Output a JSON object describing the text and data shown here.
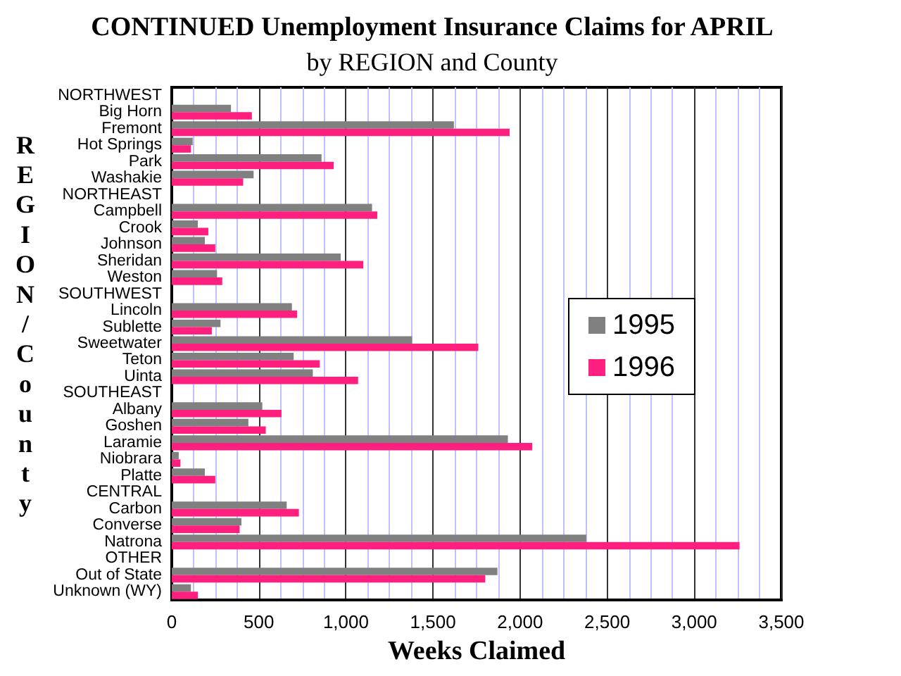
{
  "chart_data": {
    "type": "bar",
    "orientation": "horizontal",
    "title": "CONTINUED Unemployment Insurance Claims for APRIL",
    "subtitle": "by REGION and County",
    "xlabel": "Weeks Claimed",
    "ylabel": "REGION/County",
    "categories": [
      "NORTHWEST",
      "Big Horn",
      "Fremont",
      "Hot Springs",
      "Park",
      "Washakie",
      "NORTHEAST",
      "Campbell",
      "Crook",
      "Johnson",
      "Sheridan",
      "Weston",
      "SOUTHWEST",
      "Lincoln",
      "Sublette",
      "Sweetwater",
      "Teton",
      "Uinta",
      "SOUTHEAST",
      "Albany",
      "Goshen",
      "Laramie",
      "Niobrara",
      "Platte",
      "CENTRAL",
      "Carbon",
      "Converse",
      "Natrona",
      "OTHER",
      "Out of State",
      "Unknown (WY)"
    ],
    "series": [
      {
        "name": "1995",
        "color": "#808080",
        "values": [
          null,
          340,
          1620,
          120,
          860,
          470,
          null,
          1150,
          150,
          190,
          970,
          260,
          null,
          690,
          280,
          1380,
          700,
          810,
          null,
          520,
          440,
          1930,
          40,
          190,
          null,
          660,
          400,
          2380,
          null,
          1870,
          110
        ]
      },
      {
        "name": "1996",
        "color": "#ff1f7f",
        "values": [
          null,
          460,
          1940,
          110,
          930,
          410,
          null,
          1180,
          210,
          250,
          1100,
          290,
          null,
          720,
          230,
          1760,
          850,
          1070,
          null,
          630,
          540,
          2070,
          50,
          250,
          null,
          730,
          390,
          3260,
          null,
          1800,
          150
        ]
      }
    ],
    "xlim": [
      0,
      3500
    ],
    "xticks": [
      0,
      {
        "value": 125,
        "label": null
      },
      {
        "value": 250,
        "label": null
      },
      {
        "value": 375,
        "label": null
      },
      500,
      {
        "value": 625,
        "label": null
      },
      {
        "value": 750,
        "label": null
      },
      {
        "value": 875,
        "label": null
      },
      {
        "value": 1000,
        "label": "1,000"
      },
      {
        "value": 1125,
        "label": null
      },
      {
        "value": 1250,
        "label": null
      },
      {
        "value": 1375,
        "label": null
      },
      {
        "value": 1500,
        "label": "1,500"
      },
      {
        "value": 1625,
        "label": null
      },
      {
        "value": 1750,
        "label": null
      },
      {
        "value": 1875,
        "label": null
      },
      {
        "value": 2000,
        "label": "2,000"
      },
      {
        "value": 2125,
        "label": null
      },
      {
        "value": 2250,
        "label": null
      },
      {
        "value": 2375,
        "label": null
      },
      {
        "value": 2500,
        "label": "2,500"
      },
      {
        "value": 2625,
        "label": null
      },
      {
        "value": 2750,
        "label": null
      },
      {
        "value": 2875,
        "label": null
      },
      {
        "value": 3000,
        "label": "3,000"
      },
      {
        "value": 3125,
        "label": null
      },
      {
        "value": 3250,
        "label": null
      },
      {
        "value": 3375,
        "label": null
      },
      {
        "value": 3500,
        "label": "3,500"
      }
    ],
    "grid": "x",
    "legend": "right"
  }
}
